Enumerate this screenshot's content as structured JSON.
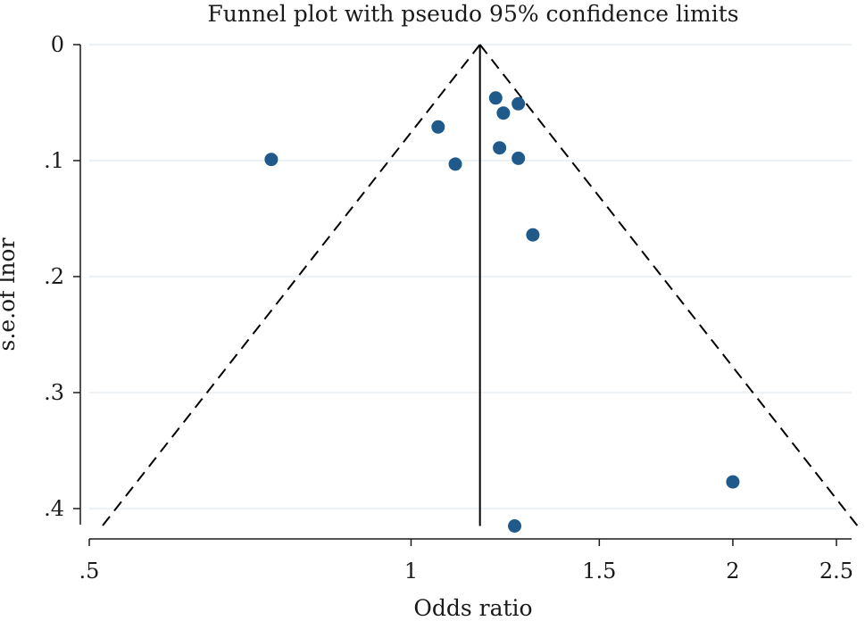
{
  "chart_data": {
    "type": "scatter",
    "title": "Funnel plot with pseudo 95% confidence limits",
    "xlabel": "Odds ratio",
    "ylabel": "s.e.of lnor",
    "x_scale": "log",
    "y_reversed": true,
    "xlim": [
      0.5,
      2.6
    ],
    "ylim": [
      0,
      0.415
    ],
    "x_ticks": [
      {
        "value": 0.5,
        "label": ".5"
      },
      {
        "value": 1,
        "label": "1"
      },
      {
        "value": 1.5,
        "label": "1.5"
      },
      {
        "value": 2,
        "label": "2"
      },
      {
        "value": 2.5,
        "label": "2.5"
      }
    ],
    "y_ticks": [
      {
        "value": 0,
        "label": "0"
      },
      {
        "value": 0.1,
        "label": ".1"
      },
      {
        "value": 0.2,
        "label": ".2"
      },
      {
        "value": 0.3,
        "label": ".3"
      },
      {
        "value": 0.4,
        "label": ".4"
      }
    ],
    "grid": "horizontal",
    "pooled_or": 1.16,
    "confidence_level": 0.95,
    "series": [
      {
        "marker_color": "#1f5a8a",
        "points": [
          {
            "x": 0.74,
            "y": 0.099
          },
          {
            "x": 1.06,
            "y": 0.071
          },
          {
            "x": 1.1,
            "y": 0.103
          },
          {
            "x": 1.2,
            "y": 0.046
          },
          {
            "x": 1.22,
            "y": 0.059
          },
          {
            "x": 1.26,
            "y": 0.051
          },
          {
            "x": 1.21,
            "y": 0.089
          },
          {
            "x": 1.26,
            "y": 0.098
          },
          {
            "x": 1.3,
            "y": 0.164
          },
          {
            "x": 2.0,
            "y": 0.377
          },
          {
            "x": 1.25,
            "y": 0.415
          }
        ]
      }
    ],
    "line_color": "#000000",
    "grid_color": "#e6eef2"
  }
}
